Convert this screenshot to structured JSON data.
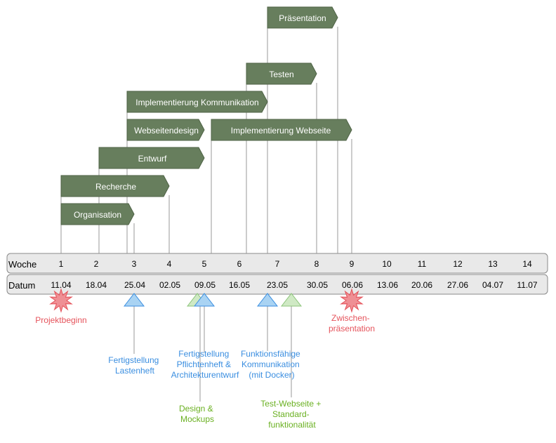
{
  "tasks": [
    {
      "id": "praesentation",
      "label": "Präsentation"
    },
    {
      "id": "testen",
      "label": "Testen"
    },
    {
      "id": "impl-komm",
      "label": "Implementierung Kommunikation"
    },
    {
      "id": "webdesign",
      "label": "Webseitendesign"
    },
    {
      "id": "impl-web",
      "label": "Implementierung Webseite"
    },
    {
      "id": "entwurf",
      "label": "Entwurf"
    },
    {
      "id": "recherche",
      "label": "Recherche"
    },
    {
      "id": "organisation",
      "label": "Organisation"
    }
  ],
  "week_row": {
    "label": "Woche",
    "weeks": [
      "1",
      "2",
      "3",
      "4",
      "5",
      "6",
      "7",
      "8",
      "9",
      "10",
      "11",
      "12",
      "13",
      "14"
    ]
  },
  "date_row": {
    "label": "Datum",
    "dates": [
      "11.04",
      "18.04",
      "25.04",
      "02.05",
      "09.05",
      "16.05",
      "23.05",
      "30.05",
      "06.06",
      "13.06",
      "20.06",
      "27.06",
      "04.07",
      "11.07"
    ]
  },
  "events": [
    {
      "id": "projektbeginn",
      "type": "star",
      "color": "#e5535b",
      "label_lines": [
        "Projektbeginn"
      ]
    },
    {
      "id": "zwischen",
      "type": "star",
      "color": "#e5535b",
      "label_lines": [
        "Zwischen-",
        "präsentation"
      ]
    },
    {
      "id": "lastenheft",
      "type": "triangle",
      "color": "#3a8ee0",
      "label_lines": [
        "Fertigstellung",
        "Lastenheft"
      ]
    },
    {
      "id": "pflichtenheft",
      "type": "triangle",
      "color": "#3a8ee0",
      "label_lines": [
        "Fertigstellung",
        "Pflichtenheft &",
        "Architekturentwurf"
      ]
    },
    {
      "id": "design",
      "type": "triangle",
      "color": "#6ab021",
      "label_lines": [
        "Design &",
        "Mockups"
      ]
    },
    {
      "id": "funktion",
      "type": "triangle",
      "color": "#3a8ee0",
      "label_lines": [
        "Funktionsfähige",
        "Kommunikation",
        "(mit Docker)"
      ]
    },
    {
      "id": "testweb",
      "type": "triangle",
      "color": "#6ab021",
      "label_lines": [
        "Test-Webseite +",
        "Standard-",
        "funktionalität"
      ]
    }
  ],
  "colors": {
    "task_fill": "#677e5d",
    "task_stroke": "#4f6346",
    "task_text": "#ffffff",
    "row_fill": "#e9e9e9",
    "row_stroke": "#8a8a8a",
    "blue_fill": "#a9d3f3",
    "green_fill": "#cfe9c4"
  }
}
